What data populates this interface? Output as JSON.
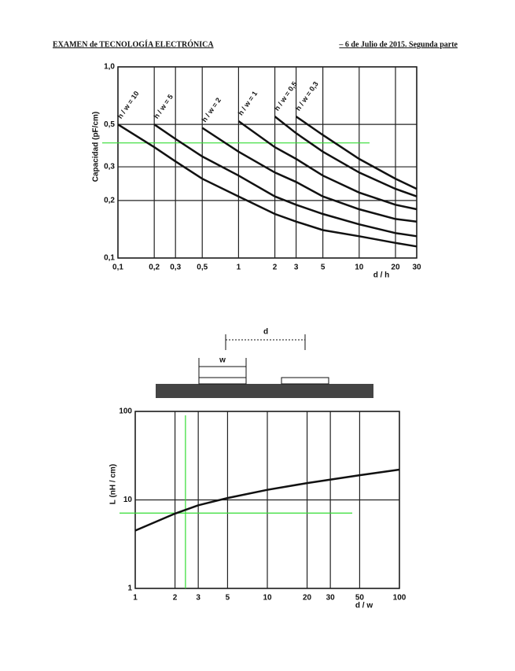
{
  "header": {
    "left": "EXAMEN de TECNOLOGÍA ELECTRÓNICA",
    "right": "– 6 de Julio de 2015. Segunda parte"
  },
  "diagram": {
    "labels": [
      "d",
      "w"
    ]
  },
  "chart_data": [
    {
      "type": "line",
      "ylabel": "Capacidad (pF/cm)",
      "xlabel": "d / h",
      "log_x": true,
      "log_y": true,
      "grid": true,
      "x": [
        0.1,
        0.2,
        0.3,
        0.5,
        1,
        2,
        3,
        5,
        10,
        20,
        30
      ],
      "series": [
        {
          "name": "h / w = 10",
          "color": "#111111",
          "values": [
            0.5,
            0.38,
            0.32,
            0.26,
            0.21,
            0.17,
            0.155,
            0.14,
            0.13,
            0.12,
            0.115
          ]
        },
        {
          "name": "h / w = 5",
          "color": "#111111",
          "values": [
            null,
            0.5,
            0.42,
            0.34,
            0.27,
            0.21,
            0.19,
            0.17,
            0.15,
            0.135,
            0.13
          ]
        },
        {
          "name": "h / w = 2",
          "color": "#111111",
          "values": [
            null,
            null,
            null,
            0.48,
            0.36,
            0.28,
            0.25,
            0.21,
            0.18,
            0.16,
            0.155
          ]
        },
        {
          "name": "h / w = 1",
          "color": "#111111",
          "values": [
            null,
            null,
            null,
            null,
            0.52,
            0.38,
            0.33,
            0.27,
            0.22,
            0.19,
            0.18
          ]
        },
        {
          "name": "h / w = 0,5",
          "color": "#111111",
          "values": [
            null,
            null,
            null,
            null,
            null,
            0.55,
            0.45,
            0.36,
            0.28,
            0.23,
            0.21
          ]
        },
        {
          "name": "h / w = 0,3",
          "color": "#111111",
          "values": [
            null,
            null,
            null,
            null,
            null,
            null,
            0.55,
            0.44,
            0.33,
            0.26,
            0.23
          ]
        }
      ],
      "xlim": [
        0.1,
        30
      ],
      "xticks": [
        {
          "value": 0.1,
          "label": "0,1"
        },
        {
          "value": 0.2,
          "label": "0,2"
        },
        {
          "value": 0.3,
          "label": "0,3"
        },
        {
          "value": 0.5,
          "label": "0,5"
        },
        1,
        2,
        3,
        5,
        10,
        20,
        30
      ],
      "ylim": [
        0.1,
        1.0
      ],
      "yticks": [
        {
          "value": 0.1,
          "label": "0,1"
        },
        {
          "value": 0.2,
          "label": "0,2"
        },
        {
          "value": 0.3,
          "label": "0,3"
        },
        {
          "value": 0.5,
          "label": "0,5"
        },
        {
          "value": 1.0,
          "label": "1,0"
        }
      ],
      "hlines": [
        0.4
      ],
      "vlines": [],
      "guide_color": "#33dd33"
    },
    {
      "type": "line",
      "ylabel": "L (nH / cm)",
      "xlabel": "d / w",
      "log_x": true,
      "log_y": true,
      "grid": true,
      "x": [
        1,
        2,
        3,
        5,
        10,
        20,
        50,
        100
      ],
      "series": [
        {
          "name": null,
          "color": "#111111",
          "values": [
            4.5,
            7,
            8.7,
            10.5,
            13,
            15.5,
            19,
            22
          ]
        }
      ],
      "xlim": [
        1,
        100
      ],
      "xticks": [
        1,
        2,
        3,
        5,
        10,
        20,
        30,
        50,
        100
      ],
      "ylim": [
        1,
        100
      ],
      "yticks": [
        1,
        10,
        100
      ],
      "hlines": [
        7.1
      ],
      "vlines": [
        2.4
      ],
      "guide_color": "#33dd33"
    }
  ]
}
